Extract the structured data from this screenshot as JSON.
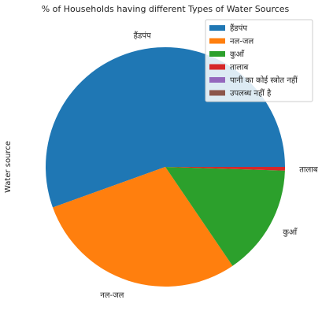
{
  "chart_data": {
    "type": "pie",
    "title": "% of Households having different Types of Water Sources",
    "ylabel": "Water source",
    "legend_position": "top-right",
    "slices": [
      {
        "label": "हैंडपंप",
        "value": 55.5,
        "color": "#1f77b4"
      },
      {
        "label": "नल-जल",
        "value": 29.0,
        "color": "#ff7f0e"
      },
      {
        "label": "कुआँ",
        "value": 15.0,
        "color": "#2ca02c"
      },
      {
        "label": "तालाब",
        "value": 0.5,
        "color": "#d62728"
      },
      {
        "label": "पानी का कोई स्त्रोत नहीं",
        "value": 0.0,
        "color": "#9467bd"
      },
      {
        "label": "उपलब्ध नहीं है",
        "value": 0.0,
        "color": "#8c564b"
      }
    ],
    "pie_labels": [
      {
        "slice": 0,
        "text": "हैंडपंप"
      },
      {
        "slice": 1,
        "text": "नल-जल"
      },
      {
        "slice": 2,
        "text": "कुआँ"
      },
      {
        "slice": 3,
        "text": "तालाब"
      }
    ]
  }
}
